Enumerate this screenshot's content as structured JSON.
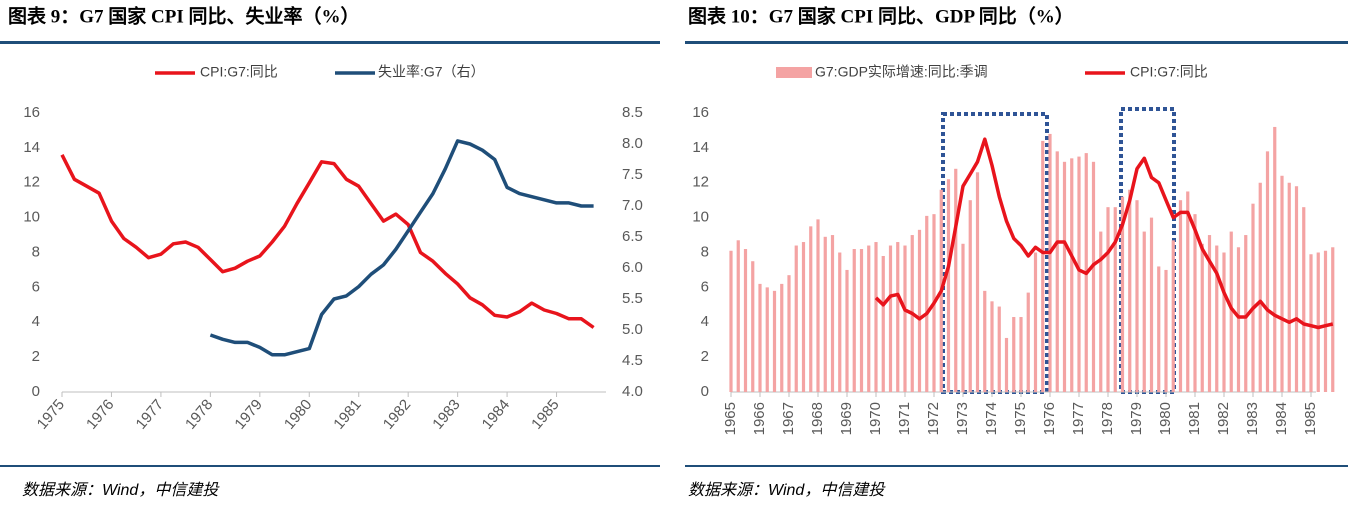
{
  "chart_data": [
    {
      "type": "line",
      "title": "图表 9：G7 国家 CPI 同比、失业率（%）",
      "source": "数据来源：Wind，中信建投",
      "x": [
        1975,
        1975.25,
        1975.5,
        1975.75,
        1976,
        1976.25,
        1976.5,
        1976.75,
        1977,
        1977.25,
        1977.5,
        1977.75,
        1978,
        1978.25,
        1978.5,
        1978.75,
        1979,
        1979.25,
        1979.5,
        1979.75,
        1980,
        1980.25,
        1980.5,
        1980.75,
        1981,
        1981.25,
        1981.5,
        1981.75,
        1982,
        1982.25,
        1982.5,
        1982.75,
        1983,
        1983.25,
        1983.5,
        1983.75,
        1984,
        1984.25,
        1984.5,
        1984.75,
        1985,
        1985.25,
        1985.5,
        1985.75
      ],
      "xlim": [
        1975,
        1986
      ],
      "xticks": [
        1975,
        1976,
        1977,
        1978,
        1979,
        1980,
        1981,
        1982,
        1983,
        1984,
        1985
      ],
      "ylim": [
        0,
        16
      ],
      "yticks": [
        0,
        2,
        4,
        6,
        8,
        10,
        12,
        14,
        16
      ],
      "y2lim": [
        4,
        8.5
      ],
      "y2ticks": [
        {
          "value": 4,
          "label": "4.0"
        },
        4.5,
        {
          "value": 5,
          "label": "5.0"
        },
        5.5,
        {
          "value": 6,
          "label": "6.0"
        },
        6.5,
        {
          "value": 7,
          "label": "7.0"
        },
        7.5,
        {
          "value": 8,
          "label": "8.0"
        },
        8.5
      ],
      "grid": false,
      "series": [
        {
          "name": "CPI:G7:同比",
          "color": "#e8141c",
          "values": [
            13.6,
            12.2,
            11.8,
            11.4,
            9.8,
            8.8,
            8.3,
            7.7,
            7.9,
            8.5,
            8.6,
            8.3,
            7.6,
            6.9,
            7.1,
            7.5,
            7.8,
            8.6,
            9.5,
            10.8,
            12.0,
            13.2,
            13.1,
            12.2,
            11.8,
            10.8,
            9.8,
            10.2,
            9.6,
            8.0,
            7.5,
            6.8,
            6.2,
            5.4,
            5.0,
            4.4,
            4.3,
            4.6,
            5.1,
            4.7,
            4.5,
            4.2,
            4.2,
            3.7
          ]
        },
        {
          "name": "失业率:G7（右）",
          "color": "#1f4e79",
          "axis": "y2",
          "values": [
            null,
            null,
            null,
            null,
            null,
            null,
            null,
            null,
            null,
            null,
            null,
            null,
            4.92,
            4.85,
            4.8,
            4.8,
            4.72,
            4.6,
            4.6,
            4.65,
            4.7,
            5.25,
            5.5,
            5.55,
            5.7,
            5.9,
            6.05,
            6.3,
            6.6,
            6.9,
            7.2,
            7.6,
            8.05,
            8.0,
            7.9,
            7.75,
            7.3,
            7.2,
            7.15,
            7.1,
            7.05,
            7.05,
            7.0,
            7.0
          ]
        }
      ]
    },
    {
      "type": "combo",
      "title": "图表 10：G7 国家 CPI 同比、GDP 同比（%）",
      "source": "数据来源：Wind，中信建投",
      "x": [
        1965,
        1965.25,
        1965.5,
        1965.75,
        1966,
        1966.25,
        1966.5,
        1966.75,
        1967,
        1967.25,
        1967.5,
        1967.75,
        1968,
        1968.25,
        1968.5,
        1968.75,
        1969,
        1969.25,
        1969.5,
        1969.75,
        1970,
        1970.25,
        1970.5,
        1970.75,
        1971,
        1971.25,
        1971.5,
        1971.75,
        1972,
        1972.25,
        1972.5,
        1972.75,
        1973,
        1973.25,
        1973.5,
        1973.75,
        1974,
        1974.25,
        1974.5,
        1974.75,
        1975,
        1975.25,
        1975.5,
        1975.75,
        1976,
        1976.25,
        1976.5,
        1976.75,
        1977,
        1977.25,
        1977.5,
        1977.75,
        1978,
        1978.25,
        1978.5,
        1978.75,
        1979,
        1979.25,
        1979.5,
        1979.75,
        1980,
        1980.25,
        1980.5,
        1980.75,
        1981,
        1981.25,
        1981.5,
        1981.75,
        1982,
        1982.25,
        1982.5,
        1982.75,
        1983,
        1983.25,
        1983.5,
        1983.75,
        1984,
        1984.25,
        1984.5,
        1984.75,
        1985,
        1985.25,
        1985.5,
        1985.75
      ],
      "xlim": [
        1965,
        1986
      ],
      "xticks": [
        1965,
        1966,
        1967,
        1968,
        1969,
        1970,
        1971,
        1972,
        1973,
        1974,
        1975,
        1976,
        1977,
        1978,
        1979,
        1980,
        1981,
        1982,
        1983,
        1984,
        1985
      ],
      "ylim": [
        0,
        16
      ],
      "yticks": [
        0,
        2,
        4,
        6,
        8,
        10,
        12,
        14,
        16
      ],
      "grid": false,
      "series": [
        {
          "name": "G7:GDP实际增速:同比:季调",
          "type": "bar",
          "color": "#f4a3a3",
          "values": [
            8.1,
            8.7,
            8.2,
            7.5,
            6.2,
            6.0,
            5.8,
            6.2,
            6.7,
            8.4,
            8.6,
            9.5,
            9.9,
            8.9,
            9.0,
            8.0,
            7.0,
            8.2,
            8.2,
            8.4,
            8.6,
            7.8,
            8.4,
            8.6,
            8.4,
            9.0,
            9.3,
            10.1,
            10.2,
            11.6,
            12.2,
            12.8,
            8.5,
            11.0,
            12.6,
            5.8,
            5.2,
            4.9,
            3.1,
            4.3,
            4.3,
            5.7,
            8.0,
            14.4,
            14.8,
            13.8,
            13.2,
            13.4,
            13.5,
            13.7,
            13.2,
            9.2,
            10.6,
            10.6,
            11.2,
            11.6,
            11.0,
            9.2,
            10.0,
            7.2,
            7.0,
            8.7,
            11.0,
            11.5,
            10.2,
            8.5,
            9.0,
            8.4,
            8.0,
            9.2,
            8.3,
            9.0,
            10.8,
            12.0,
            13.8,
            15.2,
            12.4,
            12.0,
            11.8,
            10.6,
            7.9,
            8.0,
            8.1,
            8.3
          ]
        },
        {
          "name": "CPI:G7:同比",
          "type": "line",
          "color": "#e8141c",
          "values": [
            null,
            null,
            null,
            null,
            null,
            null,
            null,
            null,
            null,
            null,
            null,
            null,
            null,
            null,
            null,
            null,
            null,
            null,
            null,
            null,
            5.4,
            5.0,
            5.5,
            5.6,
            4.7,
            4.5,
            4.2,
            4.5,
            5.1,
            5.8,
            7.2,
            9.5,
            11.8,
            12.5,
            13.2,
            14.5,
            13.0,
            11.2,
            9.8,
            8.8,
            8.4,
            7.8,
            8.3,
            8.0,
            8.0,
            8.6,
            8.6,
            7.8,
            7.0,
            6.8,
            7.3,
            7.6,
            8.0,
            8.6,
            9.6,
            11.0,
            12.8,
            13.4,
            12.3,
            12.0,
            11.0,
            10.0,
            10.3,
            10.3,
            9.3,
            8.2,
            7.5,
            6.8,
            5.7,
            4.8,
            4.3,
            4.3,
            4.8,
            5.2,
            4.7,
            4.4,
            4.2,
            4.0,
            4.2,
            3.9,
            3.8,
            3.7,
            3.8,
            3.9
          ]
        }
      ]
    }
  ]
}
